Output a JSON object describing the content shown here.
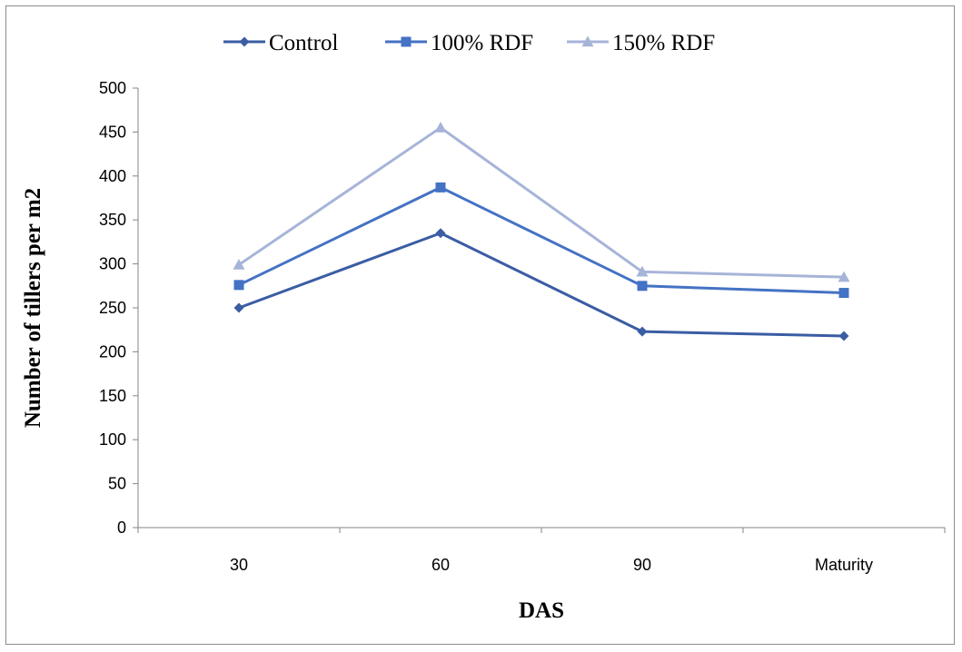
{
  "chart_data": {
    "type": "line",
    "categories": [
      "30",
      "60",
      "90",
      "Maturity"
    ],
    "xlabel": "DAS",
    "ylabel": "Number of tillers per m2",
    "ylim": [
      0,
      500
    ],
    "yticks": [
      "0",
      "50",
      "100",
      "150",
      "200",
      "250",
      "300",
      "350",
      "400",
      "450",
      "500"
    ],
    "grid": false,
    "legend_position": "top",
    "series": [
      {
        "name": "Control",
        "values": [
          250,
          335,
          223,
          218
        ],
        "color": "#3A5DA3",
        "marker": "diamond"
      },
      {
        "name": "100% RDF",
        "values": [
          276,
          387,
          275,
          267
        ],
        "color": "#4472C4",
        "marker": "square"
      },
      {
        "name": "150% RDF",
        "values": [
          299,
          455,
          291,
          285
        ],
        "color": "#A6B4D8",
        "marker": "triangle"
      }
    ]
  }
}
